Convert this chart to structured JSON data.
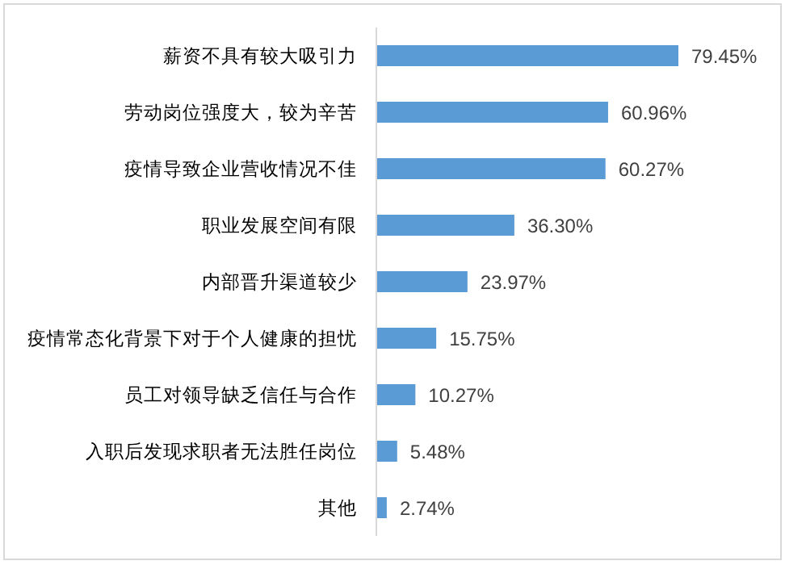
{
  "chart_data": {
    "type": "bar",
    "orientation": "horizontal",
    "categories": [
      "薪资不具有较大吸引力",
      "劳动岗位强度大，较为辛苦",
      "疫情导致企业营收情况不佳",
      "职业发展空间有限",
      "内部晋升渠道较少",
      "疫情常态化背景下对于个人健康的担忧",
      "员工对领导缺乏信任与合作",
      "入职后发现求职者无法胜任岗位",
      "其他"
    ],
    "values": [
      79.45,
      60.96,
      60.27,
      36.3,
      23.97,
      15.75,
      10.27,
      5.48,
      2.74
    ],
    "value_labels": [
      "79.45%",
      "60.96%",
      "60.27%",
      "36.30%",
      "23.97%",
      "15.75%",
      "10.27%",
      "5.48%",
      "2.74%"
    ],
    "color": "#5b9bd5",
    "tick_labels": "y"
  }
}
